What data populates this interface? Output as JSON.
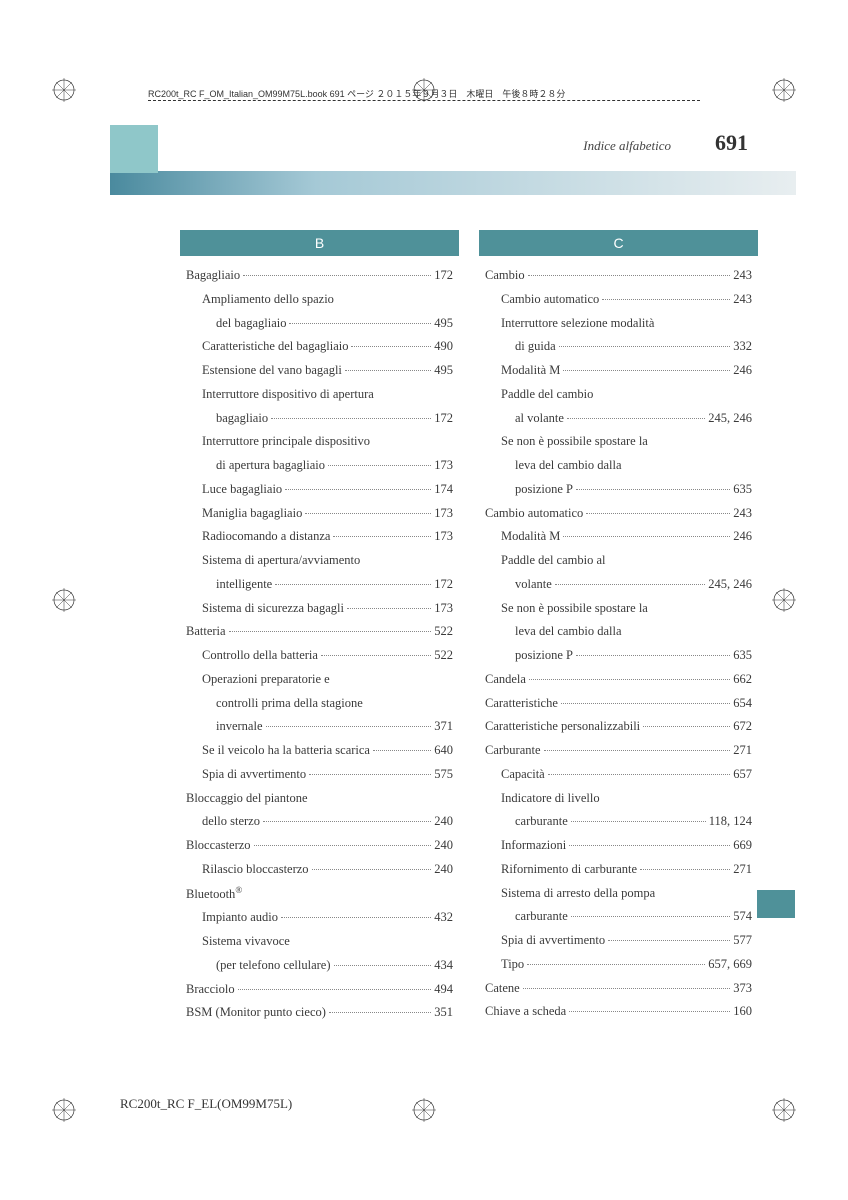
{
  "book_info": "RC200t_RC F_OM_Italian_OM99M75L.book  691 ページ  ２０１５年９月３日　木曜日　午後８時２８分",
  "header": {
    "title": "Indice alfabetico",
    "page_number": "691"
  },
  "footer": "RC200t_RC F_EL(OM99M75L)",
  "column_b": {
    "letter": "B",
    "entries": [
      {
        "l": 0,
        "t": "Bagagliaio",
        "p": "172"
      },
      {
        "l": 1,
        "t": "Ampliamento dello spazio",
        "p": ""
      },
      {
        "l": 2,
        "t": "del bagagliaio",
        "p": "495"
      },
      {
        "l": 1,
        "t": "Caratteristiche del bagagliaio",
        "p": "490"
      },
      {
        "l": 1,
        "t": "Estensione del vano bagagli",
        "p": "495"
      },
      {
        "l": 1,
        "t": "Interruttore dispositivo di apertura",
        "p": ""
      },
      {
        "l": 2,
        "t": "bagagliaio",
        "p": "172"
      },
      {
        "l": 1,
        "t": "Interruttore principale dispositivo",
        "p": ""
      },
      {
        "l": 2,
        "t": "di apertura bagagliaio",
        "p": "173"
      },
      {
        "l": 1,
        "t": "Luce bagagliaio",
        "p": "174"
      },
      {
        "l": 1,
        "t": "Maniglia bagagliaio",
        "p": "173"
      },
      {
        "l": 1,
        "t": "Radiocomando a distanza",
        "p": "173"
      },
      {
        "l": 1,
        "t": "Sistema di apertura/avviamento",
        "p": ""
      },
      {
        "l": 2,
        "t": "intelligente",
        "p": "172"
      },
      {
        "l": 1,
        "t": "Sistema di sicurezza bagagli",
        "p": "173"
      },
      {
        "l": 0,
        "t": "Batteria",
        "p": "522"
      },
      {
        "l": 1,
        "t": "Controllo della batteria",
        "p": "522"
      },
      {
        "l": 1,
        "t": "Operazioni preparatorie e",
        "p": ""
      },
      {
        "l": 2,
        "t": "controlli prima della stagione",
        "p": ""
      },
      {
        "l": 2,
        "t": "invernale",
        "p": "371"
      },
      {
        "l": 1,
        "t": "Se il veicolo ha la batteria scarica",
        "p": "640"
      },
      {
        "l": 1,
        "t": "Spia di avvertimento",
        "p": "575"
      },
      {
        "l": 0,
        "t": "Bloccaggio del piantone",
        "p": ""
      },
      {
        "l": 1,
        "t": "dello sterzo",
        "p": "240"
      },
      {
        "l": 0,
        "t": "Bloccasterzo",
        "p": "240"
      },
      {
        "l": 1,
        "t": "Rilascio bloccasterzo",
        "p": "240"
      },
      {
        "l": 0,
        "t": "Bluetooth®",
        "p": "",
        "bt": true
      },
      {
        "l": 1,
        "t": "Impianto audio",
        "p": "432"
      },
      {
        "l": 1,
        "t": "Sistema vivavoce",
        "p": ""
      },
      {
        "l": 2,
        "t": "(per telefono cellulare)",
        "p": "434"
      },
      {
        "l": 0,
        "t": "Bracciolo",
        "p": "494"
      },
      {
        "l": 0,
        "t": "BSM (Monitor punto cieco)",
        "p": "351"
      }
    ]
  },
  "column_c": {
    "letter": "C",
    "entries": [
      {
        "l": 0,
        "t": "Cambio",
        "p": "243"
      },
      {
        "l": 1,
        "t": "Cambio automatico",
        "p": "243"
      },
      {
        "l": 1,
        "t": "Interruttore selezione modalità",
        "p": ""
      },
      {
        "l": 2,
        "t": "di guida",
        "p": "332"
      },
      {
        "l": 1,
        "t": "Modalità M",
        "p": "246"
      },
      {
        "l": 1,
        "t": "Paddle del cambio",
        "p": ""
      },
      {
        "l": 2,
        "t": "al volante",
        "p": "245, 246"
      },
      {
        "l": 1,
        "t": "Se non è possibile spostare la",
        "p": ""
      },
      {
        "l": 2,
        "t": "leva del cambio dalla",
        "p": ""
      },
      {
        "l": 2,
        "t": "posizione P",
        "p": "635"
      },
      {
        "l": 0,
        "t": "Cambio automatico",
        "p": "243"
      },
      {
        "l": 1,
        "t": "Modalità M",
        "p": "246"
      },
      {
        "l": 1,
        "t": "Paddle del cambio al",
        "p": ""
      },
      {
        "l": 2,
        "t": "volante",
        "p": "245, 246"
      },
      {
        "l": 1,
        "t": "Se non è possibile spostare la",
        "p": ""
      },
      {
        "l": 2,
        "t": "leva del cambio dalla",
        "p": ""
      },
      {
        "l": 2,
        "t": "posizione P",
        "p": "635"
      },
      {
        "l": 0,
        "t": "Candela",
        "p": "662"
      },
      {
        "l": 0,
        "t": "Caratteristiche",
        "p": "654"
      },
      {
        "l": 0,
        "t": "Caratteristiche personalizzabili",
        "p": "672"
      },
      {
        "l": 0,
        "t": "Carburante",
        "p": "271"
      },
      {
        "l": 1,
        "t": "Capacità",
        "p": "657"
      },
      {
        "l": 1,
        "t": "Indicatore di livello",
        "p": ""
      },
      {
        "l": 2,
        "t": "carburante",
        "p": "118, 124"
      },
      {
        "l": 1,
        "t": "Informazioni",
        "p": "669"
      },
      {
        "l": 1,
        "t": "Rifornimento di carburante",
        "p": "271"
      },
      {
        "l": 1,
        "t": "Sistema di arresto della pompa",
        "p": ""
      },
      {
        "l": 2,
        "t": "carburante",
        "p": "574"
      },
      {
        "l": 1,
        "t": "Spia di avvertimento",
        "p": "577"
      },
      {
        "l": 1,
        "t": "Tipo",
        "p": "657, 669"
      },
      {
        "l": 0,
        "t": "Catene",
        "p": "373"
      },
      {
        "l": 0,
        "t": "Chiave a scheda",
        "p": "160"
      }
    ]
  }
}
